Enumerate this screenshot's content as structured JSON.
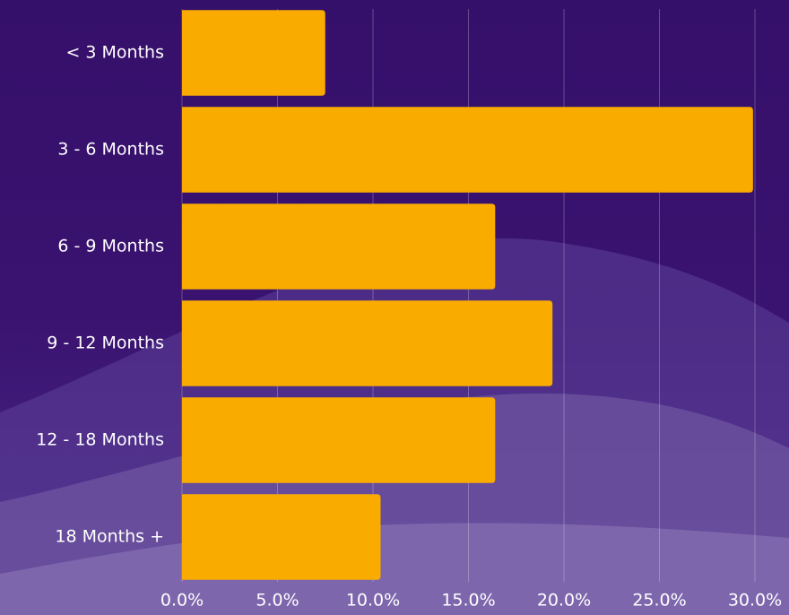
{
  "chart_data": {
    "type": "bar",
    "orientation": "horizontal",
    "categories": [
      "< 3 Months",
      "3 - 6 Months",
      "6 - 9 Months",
      "9 - 12 Months",
      "12 - 18 Months",
      "18 Months +"
    ],
    "values": [
      7.5,
      29.9,
      16.4,
      19.4,
      16.4,
      10.4
    ],
    "color": "#f9ab00",
    "xlim": [
      0,
      30
    ],
    "xticks": [
      {
        "value": 0,
        "label": "0.0%"
      },
      {
        "value": 5,
        "label": "5.0%"
      },
      {
        "value": 10,
        "label": "10.0%"
      },
      {
        "value": 15,
        "label": "15.0%"
      },
      {
        "value": 20,
        "label": "20.0%"
      },
      {
        "value": 25,
        "label": "25.0%"
      },
      {
        "value": 30,
        "label": "30.0%"
      }
    ],
    "grid": true
  }
}
